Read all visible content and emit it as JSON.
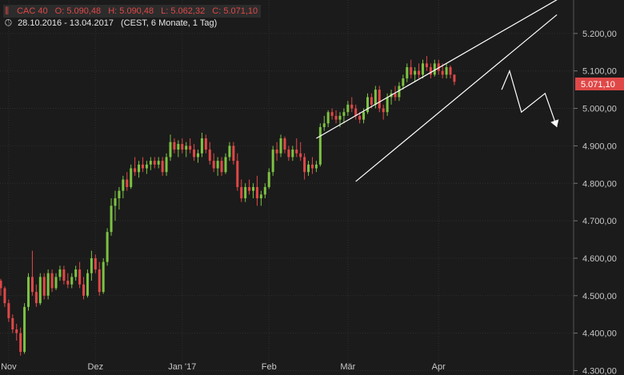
{
  "header": {
    "instrument_icon": "candles-icon",
    "ohlc": [
      "CAC 40",
      "O: 5.090,48",
      "H: 5.090,48",
      "L: 5.062,32",
      "C: 5.071,10"
    ],
    "clock_icon": "clock-icon",
    "period": "28.10.2016 - 13.04.2017",
    "timezone": "(CEST, 6 Monate, 1 Tag)"
  },
  "price_badge": "5.071,10",
  "colors": {
    "background": "#1b1b1b",
    "up": "#7cc243",
    "down": "#e04848",
    "grid": "#2e2e2e",
    "line": "#ffffff"
  },
  "chart_data": {
    "type": "candlestick",
    "y_ticks": [
      4300,
      4400,
      4500,
      4600,
      4700,
      4800,
      4900,
      5000,
      5100,
      5200
    ],
    "y_tick_labels": [
      "4.300,00",
      "4.400,00",
      "4.500,00",
      "4.600,00",
      "4.700,00",
      "4.800,00",
      "4.900,00",
      "5.000,00",
      "5.100,00",
      "5.200,00"
    ],
    "ylim": [
      4300,
      5290
    ],
    "x_tick_labels": [
      {
        "label": "Nov",
        "index": 2
      },
      {
        "label": "Dez",
        "index": 24
      },
      {
        "label": "Jan '17",
        "index": 46
      },
      {
        "label": "Feb",
        "index": 68
      },
      {
        "label": "Mär",
        "index": 88
      },
      {
        "label": "Apr",
        "index": 111
      }
    ],
    "candles": [
      [
        4540,
        4545,
        4500,
        4520
      ],
      [
        4520,
        4525,
        4470,
        4480
      ],
      [
        4480,
        4490,
        4430,
        4440
      ],
      [
        4440,
        4450,
        4400,
        4410
      ],
      [
        4410,
        4425,
        4380,
        4400
      ],
      [
        4400,
        4415,
        4340,
        4350
      ],
      [
        4350,
        4480,
        4345,
        4470
      ],
      [
        4470,
        4560,
        4460,
        4550
      ],
      [
        4550,
        4620,
        4500,
        4510
      ],
      [
        4510,
        4530,
        4470,
        4480
      ],
      [
        4480,
        4560,
        4475,
        4550
      ],
      [
        4550,
        4560,
        4490,
        4500
      ],
      [
        4500,
        4570,
        4490,
        4560
      ],
      [
        4560,
        4570,
        4510,
        4520
      ],
      [
        4520,
        4560,
        4515,
        4550
      ],
      [
        4550,
        4580,
        4540,
        4570
      ],
      [
        4570,
        4580,
        4530,
        4540
      ],
      [
        4540,
        4560,
        4520,
        4530
      ],
      [
        4530,
        4560,
        4520,
        4550
      ],
      [
        4550,
        4580,
        4540,
        4570
      ],
      [
        4570,
        4590,
        4520,
        4530
      ],
      [
        4530,
        4550,
        4490,
        4500
      ],
      [
        4500,
        4570,
        4495,
        4560
      ],
      [
        4560,
        4620,
        4540,
        4600
      ],
      [
        4600,
        4610,
        4560,
        4570
      ],
      [
        4570,
        4590,
        4500,
        4510
      ],
      [
        4510,
        4600,
        4505,
        4590
      ],
      [
        4590,
        4680,
        4580,
        4670
      ],
      [
        4670,
        4760,
        4660,
        4740
      ],
      [
        4740,
        4780,
        4700,
        4760
      ],
      [
        4760,
        4790,
        4730,
        4780
      ],
      [
        4780,
        4820,
        4760,
        4810
      ],
      [
        4810,
        4830,
        4780,
        4790
      ],
      [
        4790,
        4850,
        4785,
        4840
      ],
      [
        4840,
        4870,
        4820,
        4830
      ],
      [
        4830,
        4860,
        4815,
        4850
      ],
      [
        4850,
        4870,
        4830,
        4840
      ],
      [
        4840,
        4860,
        4825,
        4850
      ],
      [
        4850,
        4870,
        4835,
        4860
      ],
      [
        4860,
        4870,
        4840,
        4850
      ],
      [
        4850,
        4870,
        4840,
        4860
      ],
      [
        4860,
        4870,
        4820,
        4830
      ],
      [
        4830,
        4880,
        4820,
        4870
      ],
      [
        4870,
        4930,
        4860,
        4910
      ],
      [
        4910,
        4920,
        4880,
        4890
      ],
      [
        4890,
        4915,
        4870,
        4905
      ],
      [
        4905,
        4920,
        4880,
        4890
      ],
      [
        4890,
        4910,
        4870,
        4900
      ],
      [
        4900,
        4920,
        4880,
        4890
      ],
      [
        4890,
        4905,
        4860,
        4870
      ],
      [
        4870,
        4890,
        4855,
        4880
      ],
      [
        4880,
        4935,
        4870,
        4920
      ],
      [
        4920,
        4930,
        4880,
        4890
      ],
      [
        4890,
        4910,
        4850,
        4860
      ],
      [
        4860,
        4880,
        4830,
        4840
      ],
      [
        4840,
        4870,
        4820,
        4860
      ],
      [
        4860,
        4870,
        4820,
        4830
      ],
      [
        4830,
        4880,
        4825,
        4870
      ],
      [
        4870,
        4910,
        4860,
        4900
      ],
      [
        4900,
        4910,
        4850,
        4860
      ],
      [
        4860,
        4880,
        4780,
        4790
      ],
      [
        4790,
        4810,
        4750,
        4760
      ],
      [
        4760,
        4800,
        4750,
        4790
      ],
      [
        4790,
        4810,
        4770,
        4780
      ],
      [
        4780,
        4800,
        4760,
        4790
      ],
      [
        4790,
        4820,
        4740,
        4760
      ],
      [
        4760,
        4780,
        4740,
        4770
      ],
      [
        4770,
        4800,
        4760,
        4790
      ],
      [
        4790,
        4840,
        4785,
        4830
      ],
      [
        4830,
        4900,
        4820,
        4890
      ],
      [
        4890,
        4910,
        4860,
        4880
      ],
      [
        4880,
        4930,
        4870,
        4920
      ],
      [
        4920,
        4925,
        4880,
        4890
      ],
      [
        4890,
        4900,
        4860,
        4870
      ],
      [
        4870,
        4900,
        4860,
        4890
      ],
      [
        4890,
        4920,
        4870,
        4880
      ],
      [
        4880,
        4910,
        4860,
        4870
      ],
      [
        4870,
        4880,
        4810,
        4830
      ],
      [
        4830,
        4860,
        4820,
        4850
      ],
      [
        4850,
        4870,
        4825,
        4840
      ],
      [
        4840,
        4860,
        4830,
        4850
      ],
      [
        4850,
        4960,
        4845,
        4950
      ],
      [
        4950,
        4980,
        4940,
        4960
      ],
      [
        4960,
        4995,
        4950,
        4990
      ],
      [
        4990,
        5000,
        4970,
        4980
      ],
      [
        4980,
        4995,
        4960,
        4970
      ],
      [
        4970,
        4990,
        4950,
        4980
      ],
      [
        4980,
        5000,
        4960,
        4990
      ],
      [
        4990,
        5020,
        4980,
        5010
      ],
      [
        5010,
        5030,
        4990,
        5000
      ],
      [
        5000,
        5010,
        4970,
        4980
      ],
      [
        4980,
        4990,
        4960,
        4970
      ],
      [
        4970,
        5000,
        4960,
        4990
      ],
      [
        4990,
        5040,
        4985,
        5030
      ],
      [
        5030,
        5040,
        5000,
        5010
      ],
      [
        5010,
        5060,
        5000,
        5050
      ],
      [
        5050,
        5060,
        4990,
        5000
      ],
      [
        5000,
        5010,
        4970,
        4990
      ],
      [
        4990,
        5040,
        4980,
        5030
      ],
      [
        5030,
        5050,
        5010,
        5040
      ],
      [
        5040,
        5060,
        5020,
        5030
      ],
      [
        5030,
        5070,
        5020,
        5060
      ],
      [
        5060,
        5090,
        5050,
        5080
      ],
      [
        5080,
        5120,
        5070,
        5110
      ],
      [
        5110,
        5130,
        5080,
        5090
      ],
      [
        5090,
        5110,
        5070,
        5100
      ],
      [
        5100,
        5120,
        5080,
        5090
      ],
      [
        5090,
        5130,
        5080,
        5120
      ],
      [
        5120,
        5140,
        5100,
        5110
      ],
      [
        5110,
        5120,
        5080,
        5090
      ],
      [
        5090,
        5130,
        5085,
        5120
      ],
      [
        5120,
        5130,
        5090,
        5100
      ],
      [
        5100,
        5120,
        5080,
        5090
      ],
      [
        5090,
        5120,
        5080,
        5110
      ],
      [
        5110,
        5115,
        5080,
        5090
      ],
      [
        5090,
        5091,
        5062,
        5071
      ]
    ],
    "annotations": {
      "wedge_upper": [
        {
          "i": 80,
          "y": 4920
        },
        {
          "i": 141,
          "y": 5290
        }
      ],
      "wedge_lower": [
        {
          "i": 90,
          "y": 4805
        },
        {
          "i": 141,
          "y": 5250
        }
      ],
      "projection_arrow": [
        {
          "i": 127,
          "y": 5050
        },
        {
          "i": 129,
          "y": 5100
        },
        {
          "i": 132,
          "y": 4990
        },
        {
          "i": 138,
          "y": 5040
        },
        {
          "i": 141,
          "y": 4950
        }
      ]
    }
  }
}
